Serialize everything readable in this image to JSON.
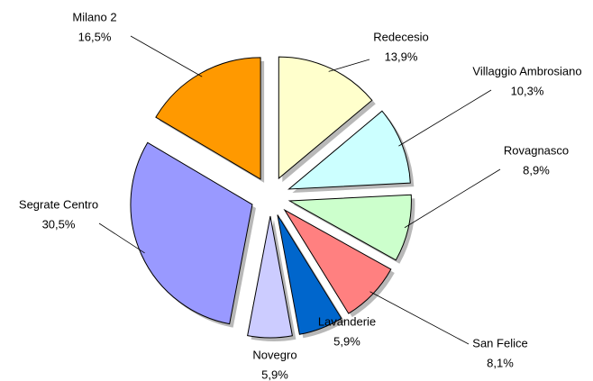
{
  "chart_data": {
    "type": "pie",
    "categories": [
      "Redecesio",
      "Villaggio Ambrosiano",
      "Rovagnasco",
      "San Felice",
      "Lavanderie",
      "Novegro",
      "Segrate Centro",
      "Milano 2"
    ],
    "values": [
      13.9,
      10.3,
      8.9,
      8.1,
      5.9,
      5.9,
      30.5,
      16.5
    ],
    "value_labels": [
      "13,9%",
      "10,3%",
      "8,9%",
      "8,1%",
      "5,9%",
      "5,9%",
      "30,5%",
      "16,5%"
    ],
    "colors": [
      "#ffffcc",
      "#ccffff",
      "#ccffcc",
      "#ff8080",
      "#0066cc",
      "#ccccff",
      "#9999ff",
      "#ff9900"
    ]
  }
}
